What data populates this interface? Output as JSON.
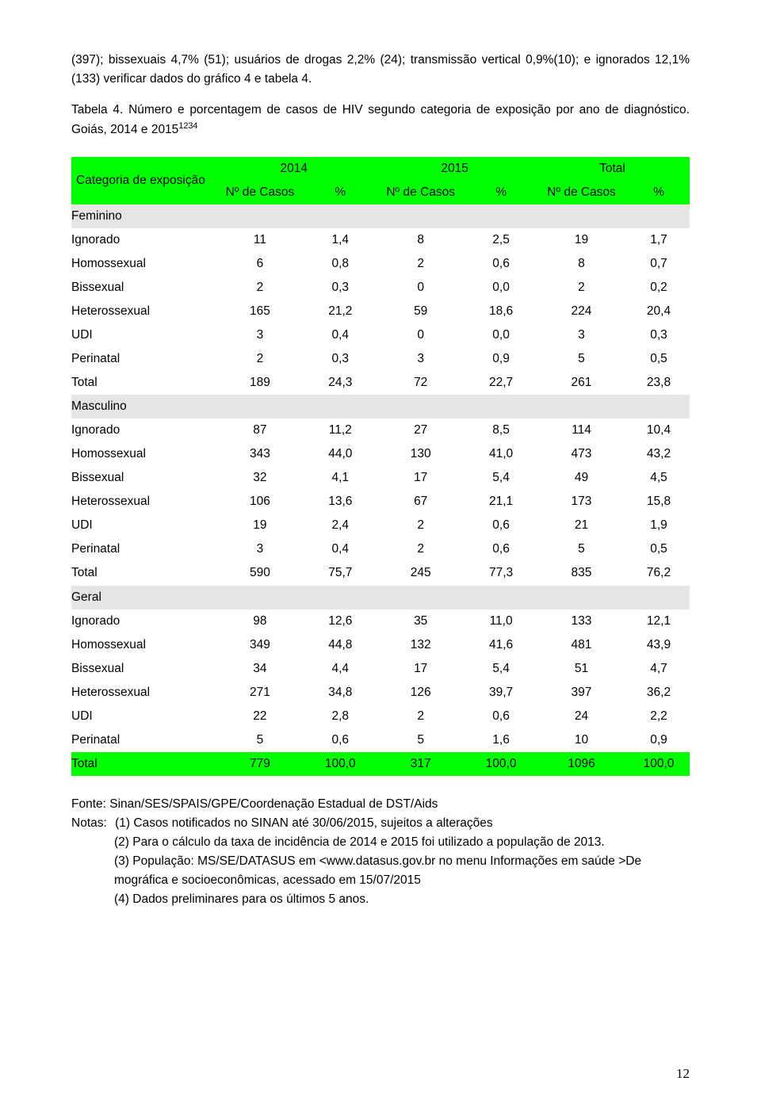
{
  "intro": "(397); bissexuais 4,7% (51); usuários de drogas 2,2% (24); transmissão vertical 0,9%(10); e ignorados 12,1% (133) verificar dados do gráfico 4 e tabela 4.",
  "table_title_1": "Tabela 4. Número e porcentagem de casos de HIV segundo categoria de exposição por ano de diagnóstico. Goiás, 2014 e 2015",
  "table_title_sup": "1234",
  "headers": {
    "rowspan_label": "Categoria de exposição",
    "year1": "2014",
    "year2": "2015",
    "total": "Total",
    "ncasos": "Nº de Casos",
    "pct": "%"
  },
  "sections": [
    {
      "name": "Feminino",
      "rows": [
        {
          "label": "Ignorado",
          "c1": "11",
          "p1": "1,4",
          "c2": "8",
          "p2": "2,5",
          "ct": "19",
          "pt": "1,7"
        },
        {
          "label": "Homossexual",
          "c1": "6",
          "p1": "0,8",
          "c2": "2",
          "p2": "0,6",
          "ct": "8",
          "pt": "0,7"
        },
        {
          "label": "Bissexual",
          "c1": "2",
          "p1": "0,3",
          "c2": "0",
          "p2": "0,0",
          "ct": "2",
          "pt": "0,2"
        },
        {
          "label": "Heterossexual",
          "c1": "165",
          "p1": "21,2",
          "c2": "59",
          "p2": "18,6",
          "ct": "224",
          "pt": "20,4"
        },
        {
          "label": "UDI",
          "c1": "3",
          "p1": "0,4",
          "c2": "0",
          "p2": "0,0",
          "ct": "3",
          "pt": "0,3"
        },
        {
          "label": "Perinatal",
          "c1": "2",
          "p1": "0,3",
          "c2": "3",
          "p2": "0,9",
          "ct": "5",
          "pt": "0,5"
        },
        {
          "label": "Total",
          "c1": "189",
          "p1": "24,3",
          "c2": "72",
          "p2": "22,7",
          "ct": "261",
          "pt": "23,8"
        }
      ]
    },
    {
      "name": "Masculino",
      "rows": [
        {
          "label": "Ignorado",
          "c1": "87",
          "p1": "11,2",
          "c2": "27",
          "p2": "8,5",
          "ct": "114",
          "pt": "10,4"
        },
        {
          "label": "Homossexual",
          "c1": "343",
          "p1": "44,0",
          "c2": "130",
          "p2": "41,0",
          "ct": "473",
          "pt": "43,2"
        },
        {
          "label": "Bissexual",
          "c1": "32",
          "p1": "4,1",
          "c2": "17",
          "p2": "5,4",
          "ct": "49",
          "pt": "4,5"
        },
        {
          "label": "Heterossexual",
          "c1": "106",
          "p1": "13,6",
          "c2": "67",
          "p2": "21,1",
          "ct": "173",
          "pt": "15,8"
        },
        {
          "label": "UDI",
          "c1": "19",
          "p1": "2,4",
          "c2": "2",
          "p2": "0,6",
          "ct": "21",
          "pt": "1,9"
        },
        {
          "label": "Perinatal",
          "c1": "3",
          "p1": "0,4",
          "c2": "2",
          "p2": "0,6",
          "ct": "5",
          "pt": "0,5"
        },
        {
          "label": "Total",
          "c1": "590",
          "p1": "75,7",
          "c2": "245",
          "p2": "77,3",
          "ct": "835",
          "pt": "76,2"
        }
      ]
    },
    {
      "name": "Geral",
      "rows": [
        {
          "label": "Ignorado",
          "c1": "98",
          "p1": "12,6",
          "c2": "35",
          "p2": "11,0",
          "ct": "133",
          "pt": "12,1"
        },
        {
          "label": "Homossexual",
          "c1": "349",
          "p1": "44,8",
          "c2": "132",
          "p2": "41,6",
          "ct": "481",
          "pt": "43,9"
        },
        {
          "label": "Bissexual",
          "c1": "34",
          "p1": "4,4",
          "c2": "17",
          "p2": "5,4",
          "ct": "51",
          "pt": "4,7"
        },
        {
          "label": "Heterossexual",
          "c1": "271",
          "p1": "34,8",
          "c2": "126",
          "p2": "39,7",
          "ct": "397",
          "pt": "36,2"
        },
        {
          "label": "UDI",
          "c1": "22",
          "p1": "2,8",
          "c2": "2",
          "p2": "0,6",
          "ct": "24",
          "pt": "2,2"
        },
        {
          "label": "Perinatal",
          "c1": "5",
          "p1": "0,6",
          "c2": "5",
          "p2": "1,6",
          "ct": "10",
          "pt": "0,9"
        }
      ]
    }
  ],
  "grand_total": {
    "label": "Total",
    "c1": "779",
    "p1": "100,0",
    "c2": "317",
    "p2": "100,0",
    "ct": "1096",
    "pt": "100,0"
  },
  "fonte": "Fonte: Sinan/SES/SPAIS/GPE/Coordenação Estadual de DST/Aids",
  "notas_label": "Notas:",
  "notas": [
    "(1) Casos notificados no SINAN até 30/06/2015, sujeitos a alterações",
    "(2) Para o cálculo da taxa de incidência de 2014 e 2015 foi utilizado a população de 2013.",
    " (3) População: MS/SE/DATASUS em <www.datasus.gov.br no menu Informações em saúde >De mográfica e socioeconômicas, acessado em 15/07/2015",
    " (4) Dados preliminares para os últimos 5 anos."
  ],
  "page_number": "12",
  "colors": {
    "header_bg": "#00ff00",
    "sub_bg": "#e5e5e5",
    "text": "#000000",
    "page_bg": "#ffffff"
  }
}
